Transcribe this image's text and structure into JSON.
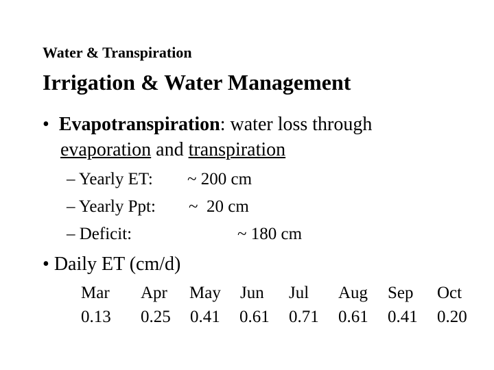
{
  "kicker": "Water & Transpiration",
  "title": "Irrigation & Water Management",
  "bullet1": {
    "marker": "•",
    "term": "Evapotranspiration",
    "text_after_term": ": water loss through",
    "line2_word1": "evaporation",
    "line2_mid": " and ",
    "line2_word2": "transpiration"
  },
  "sub_items": [
    {
      "marker": "–",
      "label": "Yearly ET:",
      "value": "~ 200 cm"
    },
    {
      "marker": "–",
      "label": "Yearly Ppt:",
      "value": "~  20 cm"
    },
    {
      "marker": "–",
      "label": "Deficit:",
      "value": "~ 180 cm"
    }
  ],
  "bullet2": {
    "marker": "•",
    "text": "Daily ET (cm/d)"
  },
  "daily_et": {
    "months": [
      "Mar",
      "Apr",
      "May",
      "Jun",
      "Jul",
      "Aug",
      "Sep",
      "Oct"
    ],
    "values": [
      "0.13",
      "0.25",
      "0.41",
      "0.61",
      "0.71",
      "0.61",
      "0.41",
      "0.20"
    ]
  }
}
